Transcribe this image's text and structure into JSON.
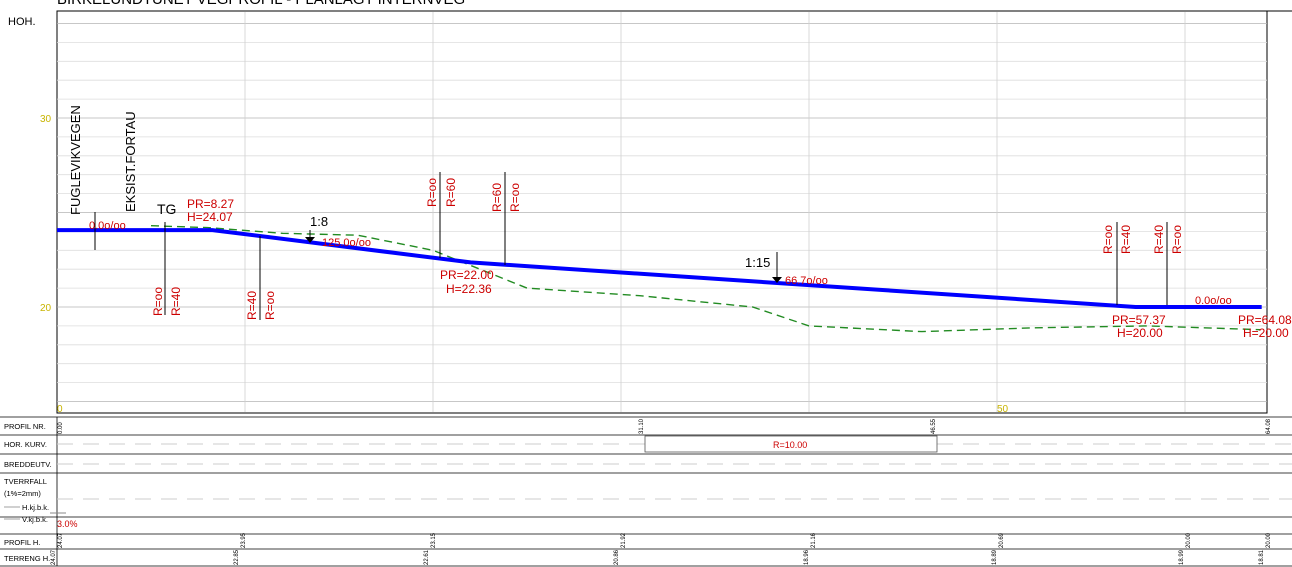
{
  "title": "BIRKELUNDTUNET VEGPROFIL - PLANLAGT INTERNVEG",
  "axis": {
    "y_label": "HOH.",
    "y_ticks": [
      "30",
      "20"
    ],
    "x_ticks": [
      "0",
      "50"
    ]
  },
  "colors": {
    "profile": "#0000ff",
    "terrain": "#228b22",
    "annotation": "#cc0000",
    "tick": "#c8b400",
    "grid": "#c8c8c8"
  },
  "vertical_labels": {
    "road": "FUGLEVIKVEGEN",
    "sidewalk": "EKSIST.FORTAU"
  },
  "profile_points": [
    {
      "station": 0,
      "height": 24.07
    },
    {
      "station": 8.27,
      "height": 24.07
    },
    {
      "station": 22.0,
      "height": 22.36
    },
    {
      "station": 57.37,
      "height": 20.0
    },
    {
      "station": 64.08,
      "height": 20.0
    }
  ],
  "terrain_points": [
    {
      "station": 5,
      "height": 24.3
    },
    {
      "station": 8,
      "height": 24.2
    },
    {
      "station": 12,
      "height": 23.9
    },
    {
      "station": 16,
      "height": 23.8
    },
    {
      "station": 20,
      "height": 23.0
    },
    {
      "station": 22.5,
      "height": 22.0
    },
    {
      "station": 25,
      "height": 21.0
    },
    {
      "station": 31,
      "height": 20.6
    },
    {
      "station": 37,
      "height": 20.0
    },
    {
      "station": 40,
      "height": 19.0
    },
    {
      "station": 46,
      "height": 18.7
    },
    {
      "station": 52,
      "height": 18.9
    },
    {
      "station": 58,
      "height": 19.0
    },
    {
      "station": 64,
      "height": 18.8
    }
  ],
  "annotations": {
    "tg": "TG",
    "pr1": "PR=8.27",
    "h1": "H=24.07",
    "slope1": "1:8",
    "grade1": "125.0o/oo",
    "grade0": "0.0o/oo",
    "pr2": "PR=22.00",
    "h2": "H=22.36",
    "slope2": "1:15",
    "grade2": "66.7o/oo",
    "grade3": "0.0o/oo",
    "pr3": "PR=57.37",
    "h3": "H=20.00",
    "pr4": "PR=64.08",
    "h4": "H=20.00",
    "r_inf": "R=oo",
    "r40": "R=40",
    "r60": "R=60"
  },
  "table": {
    "rows": [
      "PROFIL NR.",
      "HOR. KURV.",
      "BREDDEUTV.",
      "TVERRFALL",
      "(1%=2mm)",
      "H.kj.b.k.",
      "V.kj.b.k.",
      "PROFIL H.",
      "TERRENG H."
    ],
    "profil_nr": [
      "0.00",
      "31.10",
      "46.55",
      "64.08"
    ],
    "hor_kurv": "R=10.00",
    "tverrfall": "3.0%",
    "profil_h": [
      "24.07",
      "23.95",
      "23.15",
      "21.92",
      "21.16",
      "20.69",
      "20.00",
      "20.00"
    ],
    "terreng_h": [
      "24.07",
      "22.85",
      "22.61",
      "20.86",
      "18.96",
      "18.89",
      "18.99",
      "18.81"
    ]
  }
}
